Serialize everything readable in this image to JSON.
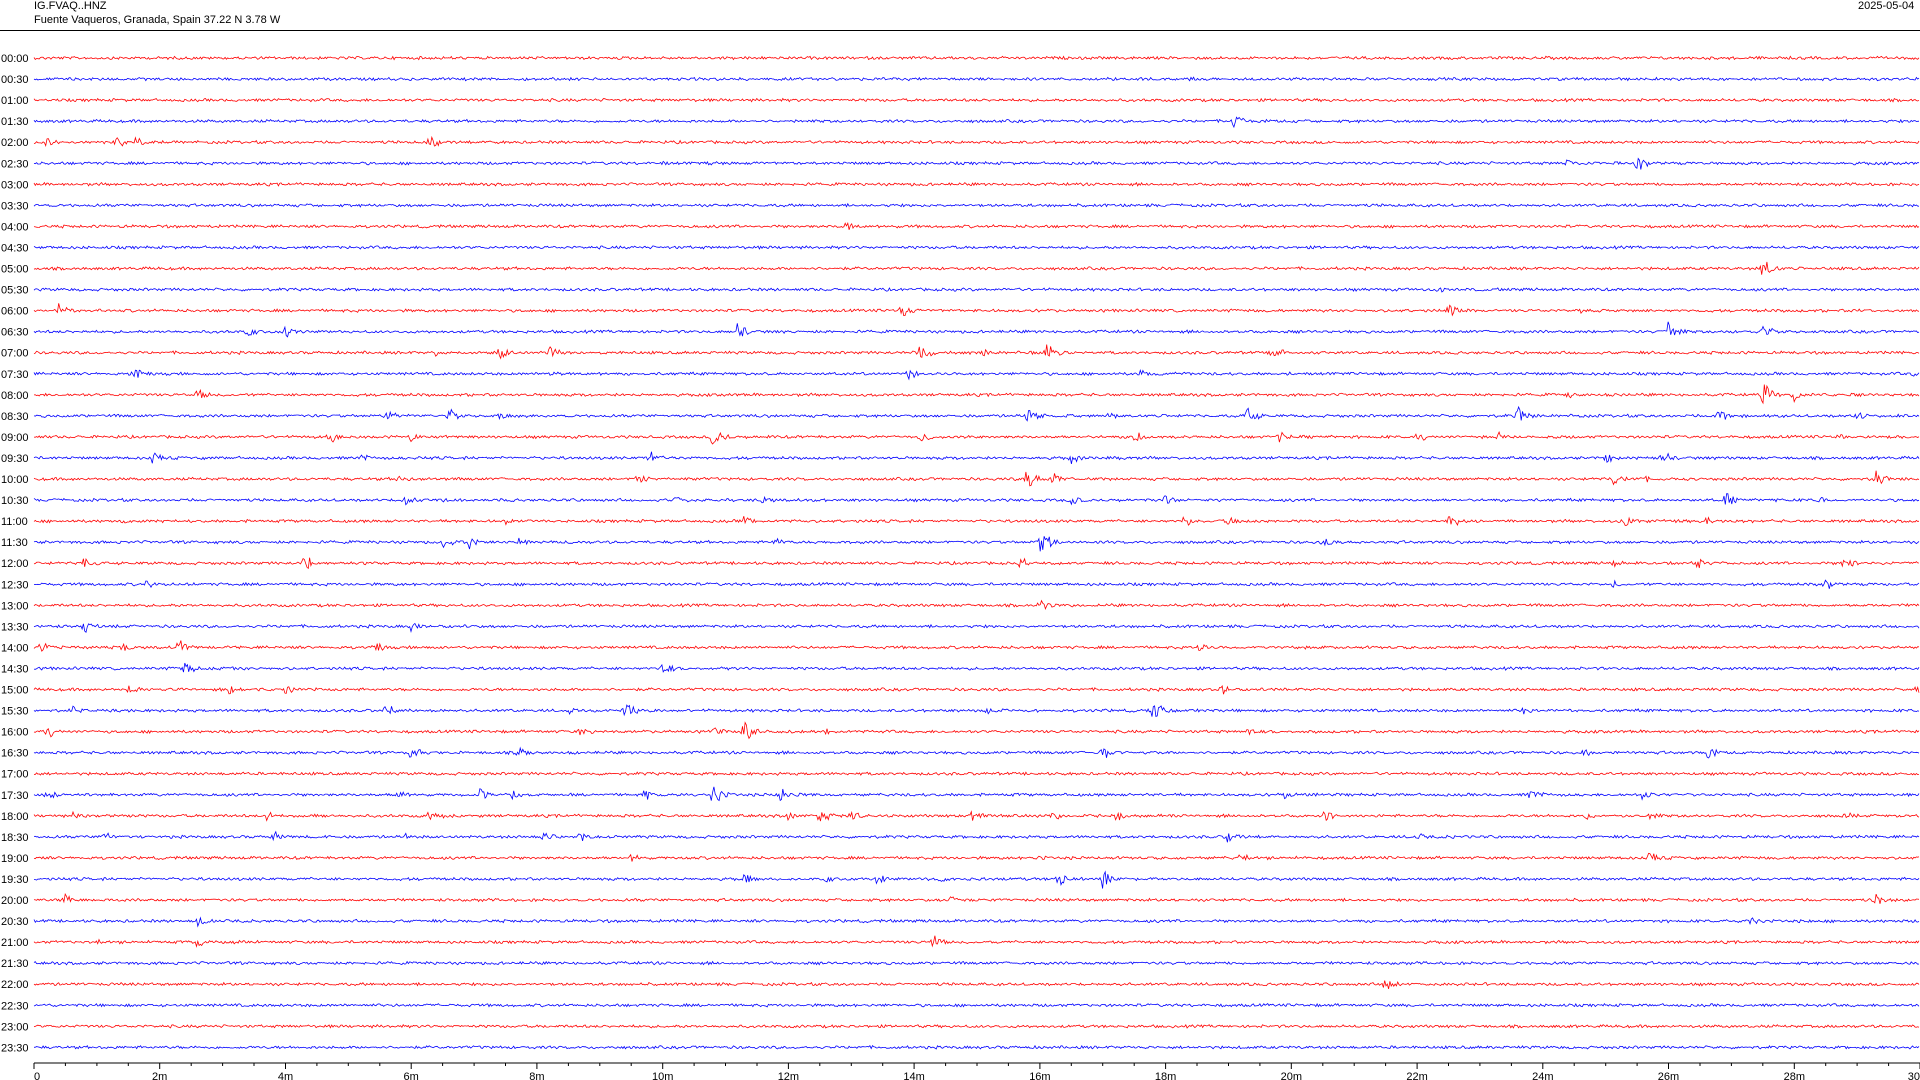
{
  "header": {
    "station_code": "IG.FVAQ..HNZ",
    "station_location": "Fuente Vaqueros, Granada, Spain  37.22 N 3.78 W",
    "date": "2025-05-04"
  },
  "colors": {
    "even_rows": "#ff0000",
    "odd_rows": "#0000ff",
    "axis": "#000000",
    "background": "#ffffff"
  },
  "chart_data": {
    "type": "helicorder",
    "title": "",
    "row_interval_minutes": 30,
    "row_labels": [
      "00:00",
      "00:30",
      "01:00",
      "01:30",
      "02:00",
      "02:30",
      "03:00",
      "03:30",
      "04:00",
      "04:30",
      "05:00",
      "05:30",
      "06:00",
      "06:30",
      "07:00",
      "07:30",
      "08:00",
      "08:30",
      "09:00",
      "09:30",
      "10:00",
      "10:30",
      "11:00",
      "11:30",
      "12:00",
      "12:30",
      "13:00",
      "13:30",
      "14:00",
      "14:30",
      "15:00",
      "15:30",
      "16:00",
      "16:30",
      "17:00",
      "17:30",
      "18:00",
      "18:30",
      "19:00",
      "19:30",
      "20:00",
      "20:30",
      "21:00",
      "21:30",
      "22:00",
      "22:30",
      "23:00",
      "23:30"
    ],
    "xlim": [
      0,
      30
    ],
    "x_ticks": [
      0,
      2,
      4,
      6,
      8,
      10,
      12,
      14,
      16,
      18,
      20,
      22,
      24,
      26,
      28,
      30
    ],
    "x_tick_labels": [
      "0",
      "2m",
      "4m",
      "6m",
      "8m",
      "10m",
      "12m",
      "14m",
      "16m",
      "18m",
      "20m",
      "22m",
      "24m",
      "26m",
      "28m",
      "30"
    ],
    "events": [
      {
        "row": 1,
        "minute": 17.2,
        "amp": 2
      },
      {
        "row": 1,
        "minute": 18.4,
        "amp": 3
      },
      {
        "row": 3,
        "minute": 12.2,
        "amp": 2
      },
      {
        "row": 3,
        "minute": 19.1,
        "amp": 12
      },
      {
        "row": 4,
        "minute": 0.2,
        "amp": 7
      },
      {
        "row": 4,
        "minute": 1.3,
        "amp": 9
      },
      {
        "row": 4,
        "minute": 1.6,
        "amp": 6
      },
      {
        "row": 4,
        "minute": 6.3,
        "amp": 8
      },
      {
        "row": 5,
        "minute": 10.0,
        "amp": 3
      },
      {
        "row": 5,
        "minute": 11.5,
        "amp": 3
      },
      {
        "row": 5,
        "minute": 24.4,
        "amp": 9
      },
      {
        "row": 5,
        "minute": 25.5,
        "amp": 10
      },
      {
        "row": 8,
        "minute": 12.9,
        "amp": 7
      },
      {
        "row": 10,
        "minute": 27.5,
        "amp": 14
      },
      {
        "row": 11,
        "minute": 22.3,
        "amp": 5
      },
      {
        "row": 12,
        "minute": 0.4,
        "amp": 9
      },
      {
        "row": 12,
        "minute": 13.8,
        "amp": 9
      },
      {
        "row": 12,
        "minute": 22.5,
        "amp": 8
      },
      {
        "row": 12,
        "minute": 24.6,
        "amp": 3
      },
      {
        "row": 12,
        "minute": 29.0,
        "amp": 3
      },
      {
        "row": 13,
        "minute": 3.4,
        "amp": 7
      },
      {
        "row": 13,
        "minute": 4.0,
        "amp": 8
      },
      {
        "row": 13,
        "minute": 11.2,
        "amp": 12
      },
      {
        "row": 13,
        "minute": 26.0,
        "amp": 14
      },
      {
        "row": 13,
        "minute": 27.5,
        "amp": 9
      },
      {
        "row": 14,
        "minute": 6.4,
        "amp": 7
      },
      {
        "row": 14,
        "minute": 7.4,
        "amp": 9
      },
      {
        "row": 14,
        "minute": 8.2,
        "amp": 9
      },
      {
        "row": 14,
        "minute": 14.1,
        "amp": 10
      },
      {
        "row": 14,
        "minute": 15.1,
        "amp": 5
      },
      {
        "row": 14,
        "minute": 16.1,
        "amp": 12
      },
      {
        "row": 14,
        "minute": 19.7,
        "amp": 10
      },
      {
        "row": 15,
        "minute": 1.6,
        "amp": 10
      },
      {
        "row": 15,
        "minute": 8.2,
        "amp": 5
      },
      {
        "row": 15,
        "minute": 13.9,
        "amp": 9
      },
      {
        "row": 15,
        "minute": 17.6,
        "amp": 7
      },
      {
        "row": 15,
        "minute": 20.0,
        "amp": 4
      },
      {
        "row": 15,
        "minute": 29.9,
        "amp": 9
      },
      {
        "row": 16,
        "minute": 2.6,
        "amp": 8
      },
      {
        "row": 16,
        "minute": 24.4,
        "amp": 6
      },
      {
        "row": 16,
        "minute": 27.5,
        "amp": 14
      },
      {
        "row": 16,
        "minute": 28.0,
        "amp": 8
      },
      {
        "row": 17,
        "minute": 5.6,
        "amp": 8
      },
      {
        "row": 17,
        "minute": 6.6,
        "amp": 9
      },
      {
        "row": 17,
        "minute": 7.4,
        "amp": 5
      },
      {
        "row": 17,
        "minute": 15.8,
        "amp": 12
      },
      {
        "row": 17,
        "minute": 17.1,
        "amp": 5
      },
      {
        "row": 17,
        "minute": 19.3,
        "amp": 12
      },
      {
        "row": 17,
        "minute": 23.6,
        "amp": 12
      },
      {
        "row": 17,
        "minute": 26.8,
        "amp": 10
      },
      {
        "row": 17,
        "minute": 29.0,
        "amp": 6
      },
      {
        "row": 18,
        "minute": 4.7,
        "amp": 8
      },
      {
        "row": 18,
        "minute": 6.0,
        "amp": 6
      },
      {
        "row": 18,
        "minute": 10.8,
        "amp": 12
      },
      {
        "row": 18,
        "minute": 14.1,
        "amp": 8
      },
      {
        "row": 18,
        "minute": 17.5,
        "amp": 8
      },
      {
        "row": 18,
        "minute": 19.8,
        "amp": 7
      },
      {
        "row": 18,
        "minute": 22.0,
        "amp": 8
      },
      {
        "row": 18,
        "minute": 23.3,
        "amp": 6
      },
      {
        "row": 18,
        "minute": 28.7,
        "amp": 4
      },
      {
        "row": 19,
        "minute": 1.9,
        "amp": 8
      },
      {
        "row": 19,
        "minute": 5.2,
        "amp": 6
      },
      {
        "row": 19,
        "minute": 9.8,
        "amp": 8
      },
      {
        "row": 19,
        "minute": 16.5,
        "amp": 7
      },
      {
        "row": 19,
        "minute": 25.0,
        "amp": 7
      },
      {
        "row": 19,
        "minute": 25.9,
        "amp": 9
      },
      {
        "row": 20,
        "minute": 5.8,
        "amp": 7
      },
      {
        "row": 20,
        "minute": 9.6,
        "amp": 8
      },
      {
        "row": 20,
        "minute": 15.8,
        "amp": 13
      },
      {
        "row": 20,
        "minute": 16.2,
        "amp": 8
      },
      {
        "row": 20,
        "minute": 25.1,
        "amp": 9
      },
      {
        "row": 20,
        "minute": 25.6,
        "amp": 6
      },
      {
        "row": 20,
        "minute": 29.3,
        "amp": 9
      },
      {
        "row": 21,
        "minute": 5.9,
        "amp": 9
      },
      {
        "row": 21,
        "minute": 6.5,
        "amp": 5
      },
      {
        "row": 21,
        "minute": 10.2,
        "amp": 7
      },
      {
        "row": 21,
        "minute": 11.6,
        "amp": 7
      },
      {
        "row": 21,
        "minute": 16.5,
        "amp": 7
      },
      {
        "row": 21,
        "minute": 18.0,
        "amp": 6
      },
      {
        "row": 21,
        "minute": 26.9,
        "amp": 10
      },
      {
        "row": 21,
        "minute": 28.4,
        "amp": 5
      },
      {
        "row": 22,
        "minute": 1.4,
        "amp": 3
      },
      {
        "row": 22,
        "minute": 7.5,
        "amp": 5
      },
      {
        "row": 22,
        "minute": 11.3,
        "amp": 8
      },
      {
        "row": 22,
        "minute": 18.3,
        "amp": 7
      },
      {
        "row": 22,
        "minute": 19.0,
        "amp": 5
      },
      {
        "row": 22,
        "minute": 22.5,
        "amp": 10
      },
      {
        "row": 22,
        "minute": 25.3,
        "amp": 9
      },
      {
        "row": 22,
        "minute": 26.6,
        "amp": 7
      },
      {
        "row": 23,
        "minute": 6.5,
        "amp": 8
      },
      {
        "row": 23,
        "minute": 6.9,
        "amp": 10
      },
      {
        "row": 23,
        "minute": 7.7,
        "amp": 5
      },
      {
        "row": 23,
        "minute": 11.8,
        "amp": 6
      },
      {
        "row": 23,
        "minute": 16.0,
        "amp": 16
      },
      {
        "row": 23,
        "minute": 20.5,
        "amp": 7
      },
      {
        "row": 24,
        "minute": 0.8,
        "amp": 7
      },
      {
        "row": 24,
        "minute": 4.3,
        "amp": 12
      },
      {
        "row": 24,
        "minute": 15.7,
        "amp": 7
      },
      {
        "row": 24,
        "minute": 25.1,
        "amp": 7
      },
      {
        "row": 24,
        "minute": 26.4,
        "amp": 9
      },
      {
        "row": 24,
        "minute": 28.8,
        "amp": 10
      },
      {
        "row": 25,
        "minute": 1.8,
        "amp": 6
      },
      {
        "row": 25,
        "minute": 25.1,
        "amp": 5
      },
      {
        "row": 25,
        "minute": 28.5,
        "amp": 8
      },
      {
        "row": 26,
        "minute": 16.0,
        "amp": 9
      },
      {
        "row": 27,
        "minute": 0.8,
        "amp": 8
      },
      {
        "row": 27,
        "minute": 6.0,
        "amp": 6
      },
      {
        "row": 27,
        "minute": 30.0,
        "amp": 9
      },
      {
        "row": 28,
        "minute": 0.1,
        "amp": 7
      },
      {
        "row": 28,
        "minute": 1.4,
        "amp": 7
      },
      {
        "row": 28,
        "minute": 2.3,
        "amp": 10
      },
      {
        "row": 28,
        "minute": 5.4,
        "amp": 9
      },
      {
        "row": 28,
        "minute": 18.5,
        "amp": 7
      },
      {
        "row": 29,
        "minute": 2.4,
        "amp": 8
      },
      {
        "row": 29,
        "minute": 10.0,
        "amp": 8
      },
      {
        "row": 30,
        "minute": 1.5,
        "amp": 8
      },
      {
        "row": 30,
        "minute": 3.1,
        "amp": 9
      },
      {
        "row": 30,
        "minute": 4.0,
        "amp": 6
      },
      {
        "row": 30,
        "minute": 18.9,
        "amp": 8
      },
      {
        "row": 30,
        "minute": 29.9,
        "amp": 7
      },
      {
        "row": 31,
        "minute": 0.6,
        "amp": 7
      },
      {
        "row": 31,
        "minute": 5.6,
        "amp": 8
      },
      {
        "row": 31,
        "minute": 8.5,
        "amp": 6
      },
      {
        "row": 31,
        "minute": 9.4,
        "amp": 10
      },
      {
        "row": 31,
        "minute": 15.1,
        "amp": 7
      },
      {
        "row": 31,
        "minute": 17.8,
        "amp": 13
      },
      {
        "row": 31,
        "minute": 23.7,
        "amp": 7
      },
      {
        "row": 32,
        "minute": 0.2,
        "amp": 10
      },
      {
        "row": 32,
        "minute": 8.7,
        "amp": 8
      },
      {
        "row": 32,
        "minute": 10.8,
        "amp": 7
      },
      {
        "row": 32,
        "minute": 11.3,
        "amp": 14
      },
      {
        "row": 32,
        "minute": 12.6,
        "amp": 6
      },
      {
        "row": 32,
        "minute": 19.3,
        "amp": 6
      },
      {
        "row": 33,
        "minute": 6.0,
        "amp": 9
      },
      {
        "row": 33,
        "minute": 7.7,
        "amp": 9
      },
      {
        "row": 33,
        "minute": 17.0,
        "amp": 9
      },
      {
        "row": 33,
        "minute": 24.6,
        "amp": 7
      },
      {
        "row": 33,
        "minute": 26.6,
        "amp": 8
      },
      {
        "row": 35,
        "minute": 0.2,
        "amp": 8
      },
      {
        "row": 35,
        "minute": 5.8,
        "amp": 7
      },
      {
        "row": 35,
        "minute": 7.1,
        "amp": 7
      },
      {
        "row": 35,
        "minute": 7.6,
        "amp": 7
      },
      {
        "row": 35,
        "minute": 9.7,
        "amp": 7
      },
      {
        "row": 35,
        "minute": 10.8,
        "amp": 14
      },
      {
        "row": 35,
        "minute": 11.9,
        "amp": 12
      },
      {
        "row": 35,
        "minute": 19.9,
        "amp": 6
      },
      {
        "row": 35,
        "minute": 23.8,
        "amp": 10
      },
      {
        "row": 35,
        "minute": 25.6,
        "amp": 7
      },
      {
        "row": 36,
        "minute": 0.6,
        "amp": 5
      },
      {
        "row": 36,
        "minute": 3.7,
        "amp": 7
      },
      {
        "row": 36,
        "minute": 6.3,
        "amp": 9
      },
      {
        "row": 36,
        "minute": 12.0,
        "amp": 6
      },
      {
        "row": 36,
        "minute": 12.5,
        "amp": 10
      },
      {
        "row": 36,
        "minute": 13.0,
        "amp": 8
      },
      {
        "row": 36,
        "minute": 14.9,
        "amp": 8
      },
      {
        "row": 36,
        "minute": 16.2,
        "amp": 7
      },
      {
        "row": 36,
        "minute": 17.2,
        "amp": 9
      },
      {
        "row": 36,
        "minute": 20.5,
        "amp": 9
      },
      {
        "row": 36,
        "minute": 24.7,
        "amp": 6
      },
      {
        "row": 36,
        "minute": 25.7,
        "amp": 7
      },
      {
        "row": 36,
        "minute": 28.8,
        "amp": 5
      },
      {
        "row": 37,
        "minute": 1.1,
        "amp": 7
      },
      {
        "row": 37,
        "minute": 3.8,
        "amp": 7
      },
      {
        "row": 37,
        "minute": 5.9,
        "amp": 5
      },
      {
        "row": 37,
        "minute": 8.1,
        "amp": 8
      },
      {
        "row": 37,
        "minute": 8.7,
        "amp": 8
      },
      {
        "row": 37,
        "minute": 19.0,
        "amp": 8
      },
      {
        "row": 37,
        "minute": 22.0,
        "amp": 5
      },
      {
        "row": 38,
        "minute": 9.5,
        "amp": 6
      },
      {
        "row": 38,
        "minute": 16.0,
        "amp": 4
      },
      {
        "row": 38,
        "minute": 19.2,
        "amp": 8
      },
      {
        "row": 38,
        "minute": 25.7,
        "amp": 9
      },
      {
        "row": 39,
        "minute": 11.3,
        "amp": 7
      },
      {
        "row": 39,
        "minute": 12.6,
        "amp": 5
      },
      {
        "row": 39,
        "minute": 13.4,
        "amp": 7
      },
      {
        "row": 39,
        "minute": 14.4,
        "amp": 6
      },
      {
        "row": 39,
        "minute": 16.3,
        "amp": 10
      },
      {
        "row": 39,
        "minute": 17.0,
        "amp": 10
      },
      {
        "row": 40,
        "minute": 0.5,
        "amp": 7
      },
      {
        "row": 40,
        "minute": 14.6,
        "amp": 7
      },
      {
        "row": 40,
        "minute": 29.3,
        "amp": 7
      },
      {
        "row": 41,
        "minute": 2.6,
        "amp": 8
      },
      {
        "row": 41,
        "minute": 27.3,
        "amp": 6
      },
      {
        "row": 42,
        "minute": 1.0,
        "amp": 5
      },
      {
        "row": 42,
        "minute": 2.6,
        "amp": 9
      },
      {
        "row": 42,
        "minute": 14.3,
        "amp": 9
      },
      {
        "row": 44,
        "minute": 21.5,
        "amp": 10
      }
    ]
  }
}
